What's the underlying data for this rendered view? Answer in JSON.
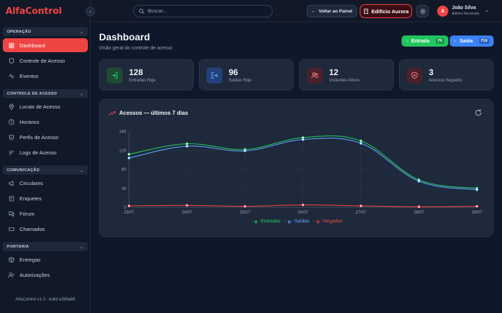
{
  "app": {
    "logo": "AlfaControl",
    "footer": "AlfaControl v1.0 · build e299a66"
  },
  "topbar": {
    "search_placeholder": "Buscar...",
    "back_label": "Voltar ao Painel",
    "building_label": "Edifício Aurora",
    "user_initial": "A",
    "user_name": "João Silva",
    "user_role": "Admin Revenda"
  },
  "sidebar": {
    "sections": [
      {
        "title": "OPERAÇÃO",
        "items": [
          {
            "label": "Dashboard",
            "icon": "dashboard-icon",
            "active": true
          },
          {
            "label": "Controle de Acesso",
            "icon": "shield-icon"
          },
          {
            "label": "Eventos",
            "icon": "activity-icon"
          }
        ]
      },
      {
        "title": "CONTROLE DE ACESSO",
        "items": [
          {
            "label": "Locais de Acesso",
            "icon": "map-pin-icon"
          },
          {
            "label": "Horários",
            "icon": "clock-icon"
          },
          {
            "label": "Perfis de Acesso",
            "icon": "shield-check-icon"
          },
          {
            "label": "Logs de Acesso",
            "icon": "list-icon"
          }
        ]
      },
      {
        "title": "COMUNICAÇÃO",
        "items": [
          {
            "label": "Circulares",
            "icon": "megaphone-icon"
          },
          {
            "label": "Enquetes",
            "icon": "poll-icon"
          },
          {
            "label": "Fórum",
            "icon": "forum-icon"
          },
          {
            "label": "Chamados",
            "icon": "ticket-icon"
          }
        ]
      },
      {
        "title": "PORTARIA",
        "items": [
          {
            "label": "Entregas",
            "icon": "package-icon"
          },
          {
            "label": "Autorizações",
            "icon": "user-check-icon"
          }
        ]
      }
    ]
  },
  "page": {
    "title": "Dashboard",
    "subtitle": "Visão geral do controle de acesso"
  },
  "actions": {
    "entrada": {
      "label": "Entrada",
      "shortcut": "F9",
      "color": "#22c55e"
    },
    "saida": {
      "label": "Saída",
      "shortcut": "F10",
      "color": "#3b82f6"
    }
  },
  "stats": [
    {
      "value": "128",
      "label": "Entradas Hoje",
      "icon": "log-in-icon",
      "color": "#22c55e",
      "bg": "#1f4a34"
    },
    {
      "value": "96",
      "label": "Saídas Hoje",
      "icon": "log-out-icon",
      "color": "#60a5fa",
      "bg": "#23417a"
    },
    {
      "value": "12",
      "label": "Visitantes Ativos",
      "icon": "users-icon",
      "color": "#f87171",
      "bg": "#46222c"
    },
    {
      "value": "3",
      "label": "Acessos Negados",
      "icon": "shield-x-icon",
      "color": "#f87171",
      "bg": "#46222c"
    }
  ],
  "chart_card": {
    "title": "Acessos — últimos 7 dias"
  },
  "chart_data": {
    "type": "line",
    "x": [
      "23/07",
      "24/07",
      "25/07",
      "26/07",
      "27/07",
      "28/07",
      "29/07"
    ],
    "ylim": [
      0,
      160
    ],
    "yticks": [
      "0",
      "40",
      "80",
      "120",
      "160"
    ],
    "grid": true,
    "legend": "bottom",
    "series": [
      {
        "name": "Entradas",
        "color": "#22c55e",
        "values": [
          112,
          134,
          122,
          147,
          140,
          58,
          40
        ]
      },
      {
        "name": "Saídas",
        "color": "#60a5fa",
        "values": [
          104,
          129,
          119,
          143,
          135,
          55,
          37
        ]
      },
      {
        "name": "Negados",
        "color": "#ef4444",
        "values": [
          3,
          4,
          2,
          5,
          3,
          1,
          2
        ]
      }
    ]
  }
}
